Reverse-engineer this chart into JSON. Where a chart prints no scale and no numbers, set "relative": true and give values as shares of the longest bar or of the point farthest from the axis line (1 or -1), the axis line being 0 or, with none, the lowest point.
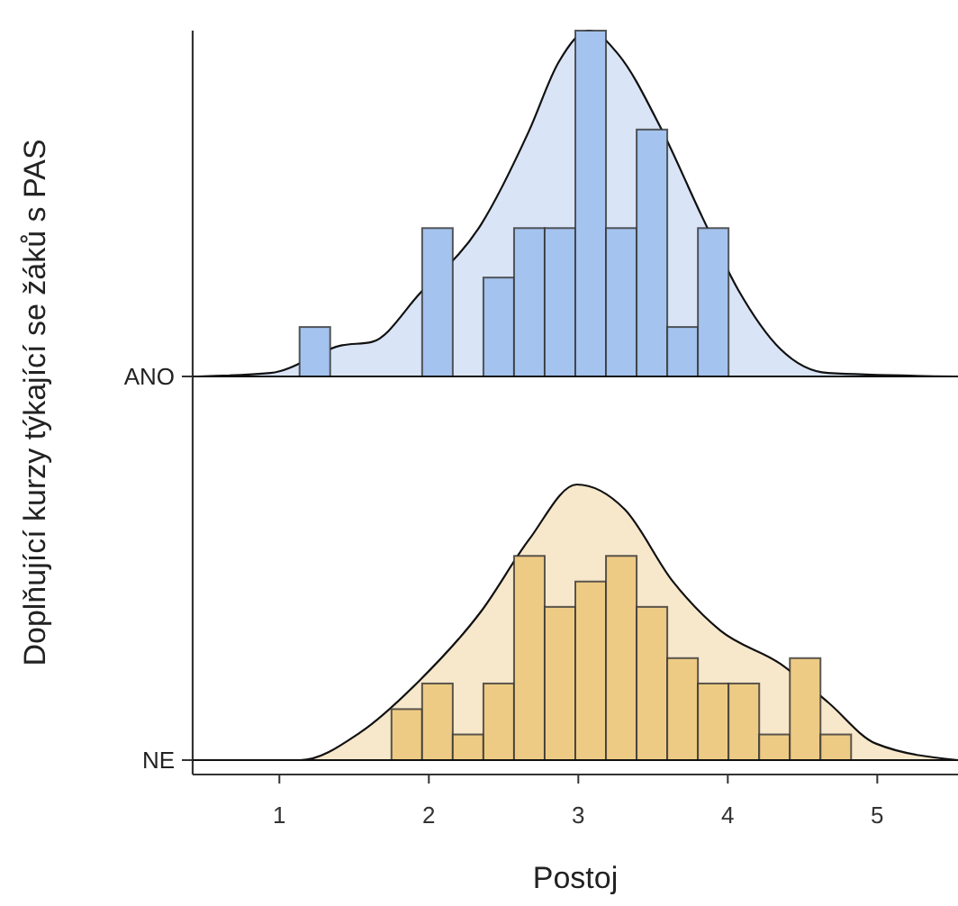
{
  "chart_data": [
    {
      "type": "histogram",
      "relative": true,
      "ylabel": "Doplňující kurzy týkající se žáků s PAS",
      "xlim": [
        0.42,
        5.54
      ],
      "tick_labels": false,
      "series": [
        {
          "type": "area",
          "name": "ANO",
          "color": "#d9e5f7",
          "x": [
            0.46,
            0.94,
            1.42,
            1.62,
            1.94,
            2.35,
            2.67,
            2.87,
            3.07,
            3.27,
            3.55,
            3.83,
            4.07,
            4.35,
            4.67,
            5.52
          ],
          "values": [
            0,
            0.01,
            0.09,
            0.1,
            0.24,
            0.44,
            0.71,
            0.91,
            1.0,
            0.93,
            0.72,
            0.46,
            0.25,
            0.08,
            0.01,
            0
          ]
        },
        {
          "color": "#a4c3ee",
          "bins": [
            0.93,
            1.135,
            1.34,
            1.545,
            1.75,
            1.955,
            2.16,
            2.365,
            2.57,
            2.775,
            2.98,
            3.185,
            3.39,
            3.595,
            3.8,
            4.005,
            4.21,
            4.415,
            4.62,
            4.825,
            5.03
          ],
          "values": [
            0,
            0.143,
            0,
            0,
            0,
            0.429,
            0,
            0.286,
            0.429,
            0.429,
            1.0,
            0.429,
            0.714,
            0.143,
            0.429,
            0,
            0,
            0,
            0,
            0
          ]
        }
      ]
    },
    {
      "type": "histogram",
      "relative": true,
      "xlabel": "Postoj",
      "xlim": [
        0.42,
        5.54
      ],
      "xticks": [
        1,
        2,
        3,
        4,
        5
      ],
      "tick_labels": "x",
      "series": [
        {
          "type": "area",
          "name": "NE",
          "color": "#f7e8cc",
          "x": [
            0.46,
            1.14,
            1.54,
            1.94,
            2.35,
            2.67,
            2.99,
            3.31,
            3.63,
            3.95,
            4.35,
            4.67,
            4.99,
            5.54
          ],
          "values": [
            0,
            0,
            0.1,
            0.29,
            0.54,
            0.8,
            1.0,
            0.91,
            0.65,
            0.47,
            0.35,
            0.21,
            0.06,
            0
          ]
        },
        {
          "color": "#eecb85",
          "bins": [
            0.93,
            1.135,
            1.34,
            1.545,
            1.75,
            1.955,
            2.16,
            2.365,
            2.57,
            2.775,
            2.98,
            3.185,
            3.39,
            3.595,
            3.8,
            4.005,
            4.21,
            4.415,
            4.62,
            4.825,
            5.03
          ],
          "values": [
            0,
            0,
            0,
            0,
            0.185,
            0.278,
            0.093,
            0.278,
            0.741,
            0.556,
            0.648,
            0.741,
            0.556,
            0.37,
            0.278,
            0.278,
            0.093,
            0.37,
            0.093,
            0
          ]
        }
      ]
    }
  ]
}
